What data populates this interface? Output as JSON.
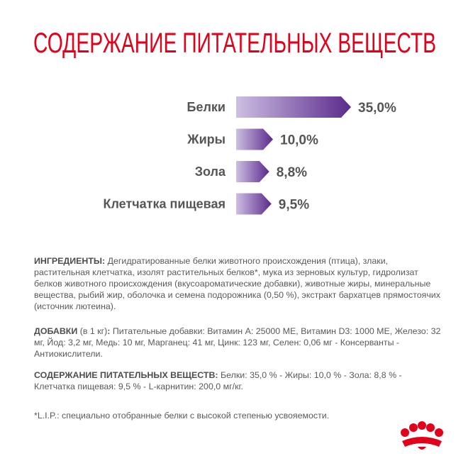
{
  "chart_data": {
    "type": "bar",
    "title": "СОДЕРЖАНИЕ ПИТАТЕЛЬНЫХ ВЕЩЕСТВ",
    "categories": [
      "Белки",
      "Жиры",
      "Зола",
      "Клетчатка пищевая"
    ],
    "values": [
      35.0,
      10.0,
      8.8,
      9.5
    ],
    "value_labels": [
      "35,0%",
      "10,0%",
      "8,8%",
      "9,5%"
    ],
    "color_start": "#cdbfe3",
    "color_end": "#5a2a8c"
  },
  "ingredients": {
    "label": "ИНГРЕДИЕНТЫ:",
    "text": " Дегидратированные белки животного происхождения (птица), злаки, растительная клетчатка, изолят растительных белков*, мука из зерновых культур, гидролизат белков животного происхождения (вкусоароматические добавки), животные жиры, минеральные вещества, рыбий жир, оболочка и семена подорожника (0,50 %), экстракт бархатцев прямостоячих (источник лютеина)."
  },
  "additives": {
    "label": "ДОБАВКИ",
    "note": " (в 1 кг)",
    "colon": ":",
    "text": " Питательные добавки: Витамин А: 25000 МЕ, Витамин D3: 1000 МЕ, Железо: 32 мг, Йод: 3,2 мг, Медь: 10 мг, Марганец: 41 мг, Цинк: 123 мг, Селен: 0,06 мг - Консерванты - Антиокислители."
  },
  "nutrients": {
    "label": "СОДЕРЖАНИЕ ПИТАТЕЛЬНЫХ ВЕЩЕСТВ:",
    "text": " Белки: 35,0 % - Жиры: 10,0 % - Зола: 8,8 % - Клетчатка пищевая: 9,5 % - L-карнитин: 200,0 мг/кг."
  },
  "footnote": "*L.I.P.: специально отобранные белки с высокой степенью усвояемости."
}
